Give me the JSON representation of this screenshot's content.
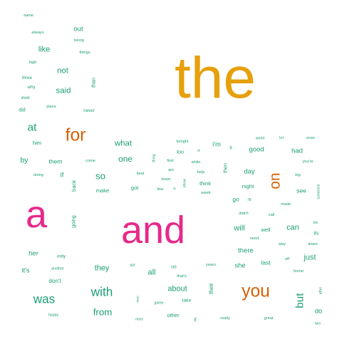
{
  "colors": {
    "teal": "#1b9e77",
    "orange": "#d95f02",
    "magenta": "#e7298a",
    "gold": "#e6a00a"
  },
  "words": [
    {
      "text": "the",
      "color": "gold",
      "weight": 5.0
    },
    {
      "text": "and",
      "color": "magenta",
      "weight": 4.2
    },
    {
      "text": "a",
      "color": "magenta",
      "weight": 4.2
    },
    {
      "text": "for",
      "color": "orange",
      "weight": 2.6
    },
    {
      "text": "you",
      "color": "orange",
      "weight": 2.6
    },
    {
      "text": "on",
      "color": "orange",
      "weight": 2.2,
      "vertical": true
    },
    {
      "text": "with",
      "color": "teal",
      "weight": 1.8
    },
    {
      "text": "was",
      "color": "teal",
      "weight": 1.8
    },
    {
      "text": "at",
      "color": "teal",
      "weight": 1.6
    },
    {
      "text": "but",
      "color": "teal",
      "weight": 1.6,
      "vertical": true
    },
    {
      "text": "so",
      "color": "teal",
      "weight": 1.4
    },
    {
      "text": "from",
      "color": "teal",
      "weight": 1.4
    },
    {
      "text": "one",
      "color": "teal",
      "weight": 1.25
    },
    {
      "text": "what",
      "color": "teal",
      "weight": 1.2
    },
    {
      "text": "not",
      "color": "teal",
      "weight": 1.2
    },
    {
      "text": "said",
      "color": "teal",
      "weight": 1.2
    },
    {
      "text": "like",
      "color": "teal",
      "weight": 1.15
    },
    {
      "text": "they",
      "color": "teal",
      "weight": 1.15
    },
    {
      "text": "about",
      "color": "teal",
      "weight": 1.15
    },
    {
      "text": "all",
      "color": "teal",
      "weight": 1.15
    },
    {
      "text": "will",
      "color": "teal",
      "weight": 1.15
    },
    {
      "text": "can",
      "color": "teal",
      "weight": 1.15
    },
    {
      "text": "just",
      "color": "teal",
      "weight": 1.15
    },
    {
      "text": "out",
      "color": "teal",
      "weight": 1.0
    },
    {
      "text": "by",
      "color": "teal",
      "weight": 1.1
    },
    {
      "text": "there",
      "color": "teal",
      "weight": 1.0
    },
    {
      "text": "she",
      "color": "teal",
      "weight": 1.0
    },
    {
      "text": "had",
      "color": "teal",
      "weight": 1.0
    },
    {
      "text": "her",
      "color": "teal",
      "weight": 1.0
    },
    {
      "text": "it's",
      "color": "teal",
      "weight": 1.0
    },
    {
      "text": "if",
      "color": "teal",
      "weight": 1.0
    },
    {
      "text": "day",
      "color": "teal",
      "weight": 1.0
    },
    {
      "text": "good",
      "color": "teal",
      "weight": 1.0
    },
    {
      "text": "i'm",
      "color": "teal",
      "weight": 1.0
    },
    {
      "text": "do",
      "color": "teal",
      "weight": 1.0
    },
    {
      "text": "last",
      "color": "teal",
      "weight": 0.9
    },
    {
      "text": "them",
      "color": "teal",
      "weight": 0.9
    },
    {
      "text": "see",
      "color": "teal",
      "weight": 0.9
    },
    {
      "text": "go",
      "color": "teal",
      "weight": 0.9
    },
    {
      "text": "don't",
      "color": "teal",
      "weight": 0.85
    },
    {
      "text": "their",
      "color": "teal",
      "weight": 0.85,
      "vertical": true
    },
    {
      "text": "him",
      "color": "teal",
      "weight": 0.8
    },
    {
      "text": "did",
      "color": "teal",
      "weight": 0.75
    },
    {
      "text": "got",
      "color": "teal",
      "weight": 0.8
    },
    {
      "text": "make",
      "color": "teal",
      "weight": 0.8
    },
    {
      "text": "think",
      "color": "teal",
      "weight": 0.8
    },
    {
      "text": "night",
      "color": "teal",
      "weight": 0.8
    },
    {
      "text": "other",
      "color": "teal",
      "weight": 0.8
    },
    {
      "text": "well",
      "color": "teal",
      "weight": 0.8
    },
    {
      "text": "us",
      "color": "teal",
      "weight": 0.75
    },
    {
      "text": "back",
      "color": "teal",
      "weight": 0.8,
      "vertical": true
    },
    {
      "text": "going",
      "color": "teal",
      "weight": 0.75,
      "vertical": true
    },
    {
      "text": "then",
      "color": "teal",
      "weight": 0.75,
      "vertical": true
    },
    {
      "text": "than",
      "color": "teal",
      "weight": 0.75,
      "vertical": true
    },
    {
      "text": "too",
      "color": "teal",
      "weight": 0.75
    },
    {
      "text": "take",
      "color": "teal",
      "weight": 0.7
    },
    {
      "text": "its",
      "color": "teal",
      "weight": 0.75
    },
    {
      "text": "only",
      "color": "teal",
      "weight": 0.7
    },
    {
      "text": "three",
      "color": "teal",
      "weight": 0.65
    },
    {
      "text": "why",
      "color": "teal",
      "weight": 0.65
    },
    {
      "text": "ever",
      "color": "teal",
      "weight": 0.65
    },
    {
      "text": "high",
      "color": "teal",
      "weight": 0.6
    },
    {
      "text": "place",
      "color": "teal",
      "weight": 0.6
    },
    {
      "text": "never",
      "color": "teal",
      "weight": 0.65
    },
    {
      "text": "same",
      "color": "teal",
      "weight": 0.6
    },
    {
      "text": "always",
      "color": "teal",
      "weight": 0.6
    },
    {
      "text": "being",
      "color": "teal",
      "weight": 0.6
    },
    {
      "text": "things",
      "color": "teal",
      "weight": 0.6
    },
    {
      "text": "come",
      "color": "teal",
      "weight": 0.6
    },
    {
      "text": "doing",
      "color": "teal",
      "weight": 0.6
    },
    {
      "text": "best",
      "color": "teal",
      "weight": 0.6
    },
    {
      "text": "find",
      "color": "teal",
      "weight": 0.6
    },
    {
      "text": "am",
      "color": "teal",
      "weight": 0.6
    },
    {
      "text": "team",
      "color": "teal",
      "weight": 0.6
    },
    {
      "text": "few",
      "color": "teal",
      "weight": 0.6
    },
    {
      "text": "u",
      "color": "teal",
      "weight": 0.6
    },
    {
      "text": "tonight",
      "color": "teal",
      "weight": 0.6
    },
    {
      "text": "rt",
      "color": "teal",
      "weight": 0.6
    },
    {
      "text": "while",
      "color": "teal",
      "weight": 0.6
    },
    {
      "text": "help",
      "color": "teal",
      "weight": 0.6
    },
    {
      "text": "week",
      "color": "teal",
      "weight": 0.6
    },
    {
      "text": "thing",
      "color": "teal",
      "weight": 0.55,
      "vertical": true
    },
    {
      "text": "show",
      "color": "teal",
      "weight": 0.55,
      "vertical": true
    },
    {
      "text": "let",
      "color": "teal",
      "weight": 0.5,
      "vertical": true
    },
    {
      "text": "world",
      "color": "teal",
      "weight": 0.55
    },
    {
      "text": "lol",
      "color": "teal",
      "weight": 0.6
    },
    {
      "text": "even",
      "color": "teal",
      "weight": 0.6
    },
    {
      "text": "you're",
      "color": "teal",
      "weight": 0.6
    },
    {
      "text": "big",
      "color": "teal",
      "weight": 0.6
    },
    {
      "text": "i'll",
      "color": "teal",
      "weight": 0.6
    },
    {
      "text": "someone",
      "color": "teal",
      "weight": 0.55,
      "vertical": true
    },
    {
      "text": "made",
      "color": "teal",
      "weight": 0.6
    },
    {
      "text": "didn't",
      "color": "teal",
      "weight": 0.6
    },
    {
      "text": "call",
      "color": "teal",
      "weight": 0.6
    },
    {
      "text": "lot",
      "color": "teal",
      "weight": 0.6
    },
    {
      "text": "need",
      "color": "teal",
      "weight": 0.6
    },
    {
      "text": "way",
      "color": "teal",
      "weight": 0.6
    },
    {
      "text": "down",
      "color": "teal",
      "weight": 0.6
    },
    {
      "text": "off",
      "color": "teal",
      "weight": 0.6
    },
    {
      "text": "home",
      "color": "teal",
      "weight": 0.6
    },
    {
      "text": "years",
      "color": "teal",
      "weight": 0.6
    },
    {
      "text": "put",
      "color": "teal",
      "weight": 0.55
    },
    {
      "text": "another",
      "color": "teal",
      "weight": 0.55
    },
    {
      "text": "that's",
      "color": "teal",
      "weight": 0.6
    },
    {
      "text": "man",
      "color": "teal",
      "weight": 0.5,
      "vertical": true
    },
    {
      "text": "game",
      "color": "teal",
      "weight": 0.55
    },
    {
      "text": "after",
      "color": "teal",
      "weight": 0.55,
      "vertical": true
    },
    {
      "text": "happy",
      "color": "teal",
      "weight": 0.55
    },
    {
      "text": "next",
      "color": "teal",
      "weight": 0.55
    },
    {
      "text": "life",
      "color": "teal",
      "weight": 0.5,
      "vertical": true
    },
    {
      "text": "really",
      "color": "teal",
      "weight": 0.6
    },
    {
      "text": "great",
      "color": "teal",
      "weight": 0.6
    },
    {
      "text": "two",
      "color": "teal",
      "weight": 0.55
    }
  ]
}
